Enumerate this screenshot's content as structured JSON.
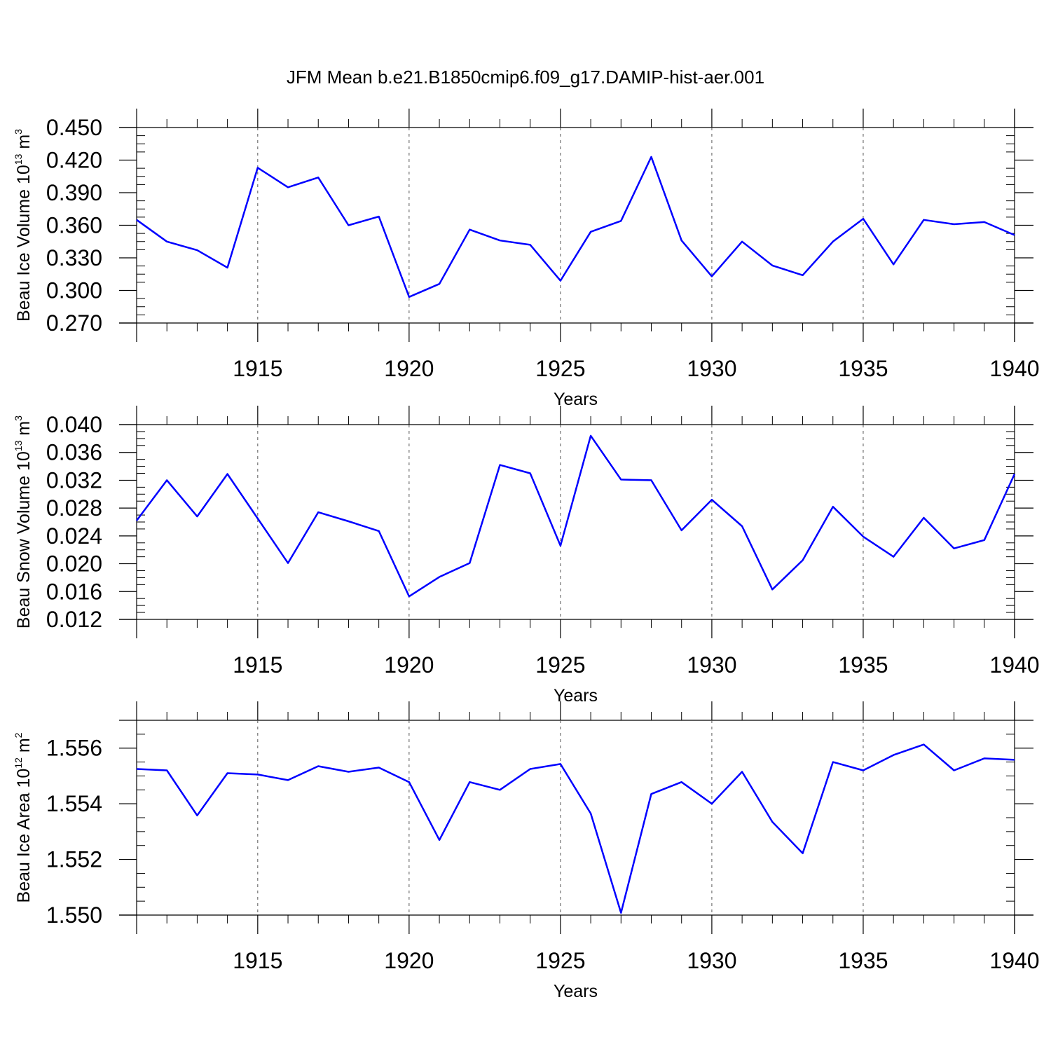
{
  "title": "JFM Mean b.e21.B1850cmip6.f09_g17.DAMIP-hist-aer.001",
  "line_color": "#0000ff",
  "chart_data": [
    {
      "type": "line",
      "ylabel": "Beau Ice Volume 10",
      "ylabel_exp": "13",
      "ylabel_unit": " m",
      "ylabel_unit_exp": "3",
      "xlabel": "Years",
      "xlim": [
        1911,
        1940
      ],
      "ylim": [
        0.27,
        0.45
      ],
      "yticks": [
        0.27,
        0.3,
        0.33,
        0.36,
        0.39,
        0.42,
        0.45
      ],
      "ytick_labels": [
        "0.270",
        "0.300",
        "0.330",
        "0.360",
        "0.390",
        "0.420",
        "0.450"
      ],
      "xticks": [
        1915,
        1920,
        1925,
        1930,
        1935,
        1940
      ],
      "xtick_labels": [
        "1915",
        "1920",
        "1925",
        "1930",
        "1935",
        "1940"
      ],
      "x": [
        1911,
        1912,
        1913,
        1914,
        1915,
        1916,
        1917,
        1918,
        1919,
        1920,
        1921,
        1922,
        1923,
        1924,
        1925,
        1926,
        1927,
        1928,
        1929,
        1930,
        1931,
        1932,
        1933,
        1934,
        1935,
        1936,
        1937,
        1938,
        1939,
        1940
      ],
      "values": [
        0.365,
        0.345,
        0.337,
        0.321,
        0.413,
        0.395,
        0.404,
        0.36,
        0.368,
        0.294,
        0.306,
        0.356,
        0.346,
        0.342,
        0.309,
        0.354,
        0.364,
        0.423,
        0.346,
        0.313,
        0.345,
        0.323,
        0.314,
        0.345,
        0.366,
        0.324,
        0.365,
        0.361,
        0.363,
        0.351
      ]
    },
    {
      "type": "line",
      "ylabel": "Beau Snow Volume 10",
      "ylabel_exp": "13",
      "ylabel_unit": " m",
      "ylabel_unit_exp": "3",
      "xlabel": "Years",
      "xlim": [
        1911,
        1940
      ],
      "ylim": [
        0.012,
        0.04
      ],
      "yticks": [
        0.012,
        0.016,
        0.02,
        0.024,
        0.028,
        0.032,
        0.036,
        0.04
      ],
      "ytick_labels": [
        "0.012",
        "0.016",
        "0.020",
        "0.024",
        "0.028",
        "0.032",
        "0.036",
        "0.040"
      ],
      "xticks": [
        1915,
        1920,
        1925,
        1930,
        1935,
        1940
      ],
      "xtick_labels": [
        "1915",
        "1920",
        "1925",
        "1930",
        "1935",
        "1940"
      ],
      "x": [
        1911,
        1912,
        1913,
        1914,
        1915,
        1916,
        1917,
        1918,
        1919,
        1920,
        1921,
        1922,
        1923,
        1924,
        1925,
        1926,
        1927,
        1928,
        1929,
        1930,
        1931,
        1932,
        1933,
        1934,
        1935,
        1936,
        1937,
        1938,
        1939,
        1940
      ],
      "values": [
        0.0262,
        0.032,
        0.0268,
        0.0329,
        0.0265,
        0.0201,
        0.0274,
        0.0261,
        0.0247,
        0.0153,
        0.0181,
        0.0201,
        0.0342,
        0.033,
        0.0226,
        0.0384,
        0.0321,
        0.032,
        0.0248,
        0.0292,
        0.0254,
        0.0163,
        0.0205,
        0.0282,
        0.0239,
        0.021,
        0.0266,
        0.0222,
        0.0234,
        0.0329
      ]
    },
    {
      "type": "line",
      "ylabel": "Beau Ice Area 10",
      "ylabel_exp": "12",
      "ylabel_unit": " m",
      "ylabel_unit_exp": "2",
      "xlabel": "Years",
      "xlim": [
        1911,
        1940
      ],
      "ylim": [
        1.55,
        1.557
      ],
      "yticks": [
        1.55,
        1.552,
        1.554,
        1.556
      ],
      "ytick_labels": [
        "1.550",
        "1.552",
        "1.554",
        "1.556"
      ],
      "xticks": [
        1915,
        1920,
        1925,
        1930,
        1935,
        1940
      ],
      "xtick_labels": [
        "1915",
        "1920",
        "1925",
        "1930",
        "1935",
        "1940"
      ],
      "x": [
        1911,
        1912,
        1913,
        1914,
        1915,
        1916,
        1917,
        1918,
        1919,
        1920,
        1921,
        1922,
        1923,
        1924,
        1925,
        1926,
        1927,
        1928,
        1929,
        1930,
        1931,
        1932,
        1933,
        1934,
        1935,
        1936,
        1937,
        1938,
        1939,
        1940
      ],
      "values": [
        1.55525,
        1.5552,
        1.55358,
        1.5551,
        1.55505,
        1.55485,
        1.55535,
        1.55515,
        1.5553,
        1.55478,
        1.5527,
        1.55478,
        1.5545,
        1.55525,
        1.55543,
        1.55365,
        1.55008,
        1.55435,
        1.55478,
        1.554,
        1.55515,
        1.55335,
        1.55222,
        1.5555,
        1.5552,
        1.55575,
        1.55613,
        1.5552,
        1.55563,
        1.55558
      ]
    }
  ]
}
